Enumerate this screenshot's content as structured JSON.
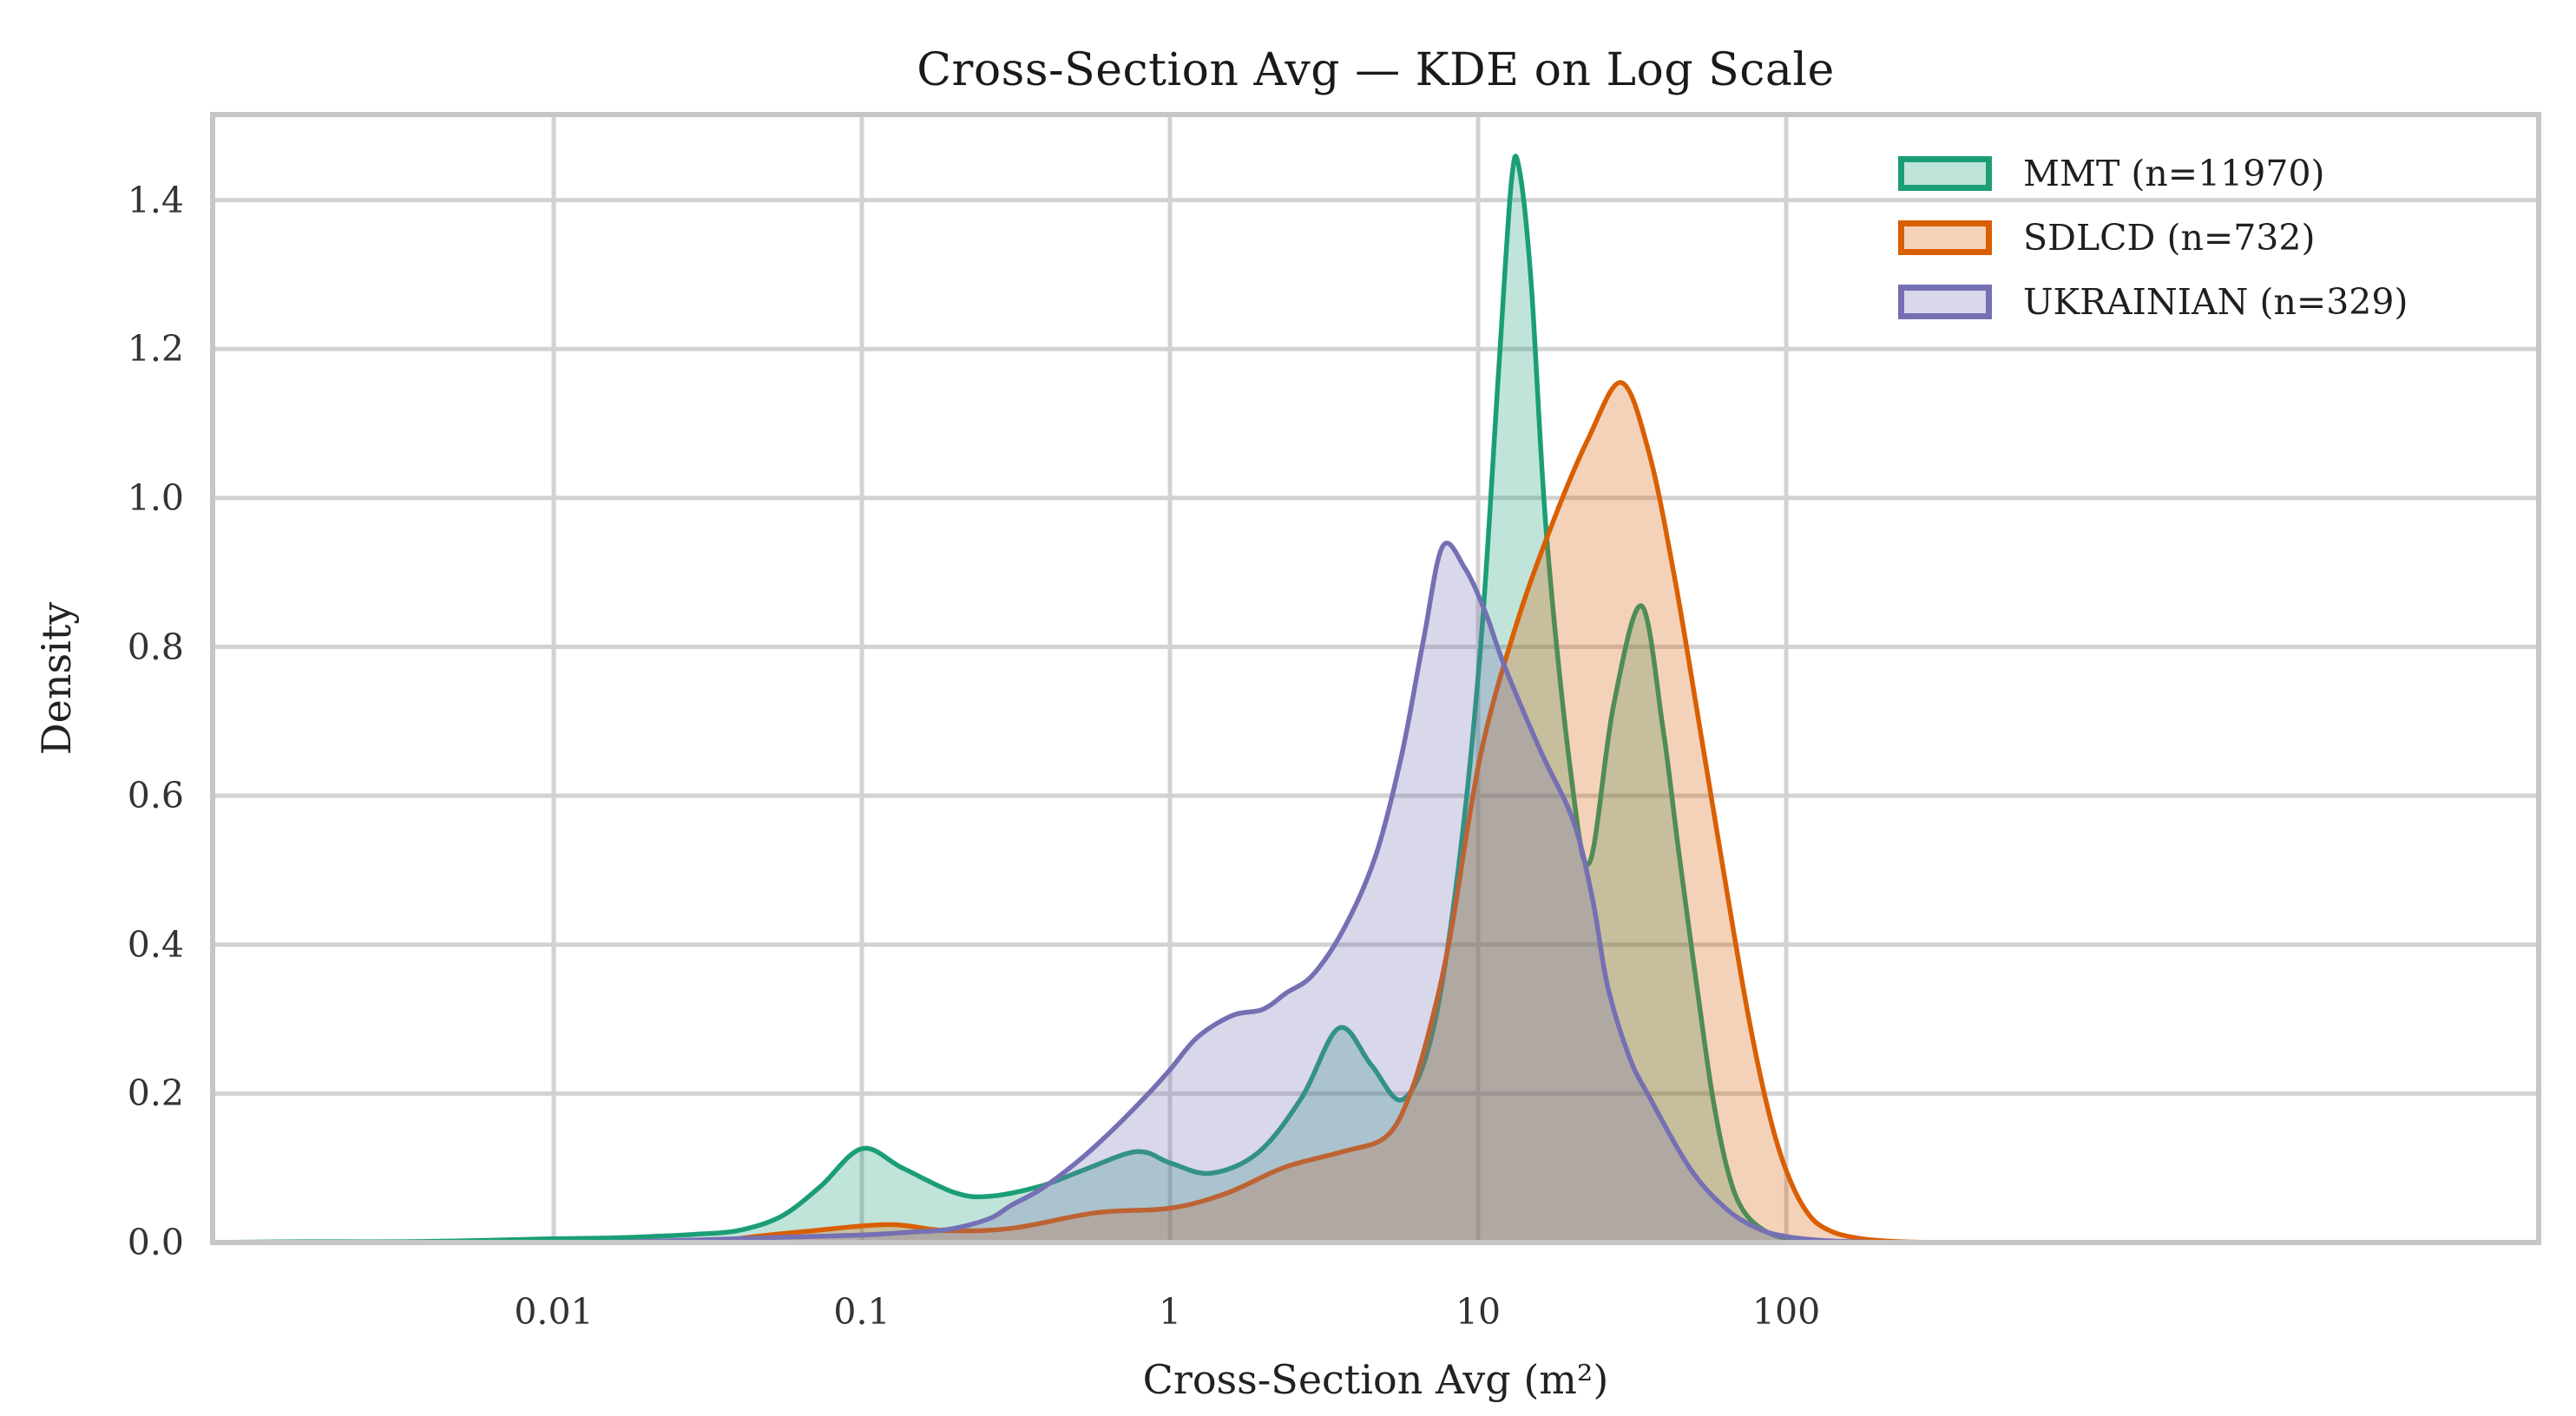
{
  "title": "Cross-Section Avg — KDE on Log Scale",
  "axes": {
    "xlabel": "Cross-Section Avg (m²)",
    "ylabel": "Density",
    "x_tick_labels": [
      "0.01",
      "0.1",
      "1",
      "10",
      "100"
    ],
    "x_tick_logs": [
      -2,
      -1,
      0,
      1,
      2
    ],
    "y_tick_labels": [
      "0.0",
      "0.2",
      "0.4",
      "0.6",
      "0.8",
      "1.0",
      "1.2",
      "1.4"
    ],
    "y_tick_values": [
      0.0,
      0.2,
      0.4,
      0.6,
      0.8,
      1.0,
      1.2,
      1.4
    ]
  },
  "legend": {
    "entries": [
      {
        "label": "MMT (n=11970)",
        "color": "#1b9e77"
      },
      {
        "label": "SDLCD (n=732)",
        "color": "#d95f02"
      },
      {
        "label": "UKRAINIAN (n=329)",
        "color": "#7570b3"
      }
    ]
  },
  "style": {
    "grid_color": "#d2d2d2",
    "spine_color": "#c6c6c6",
    "background": "#ffffff",
    "fill_alpha": 0.28,
    "line_width": 5.5
  },
  "chart_data": {
    "type": "area",
    "subtype": "kde",
    "x_scale": "log10",
    "title": "Cross-Section Avg — KDE on Log Scale",
    "xlabel": "Cross-Section Avg (m²)",
    "ylabel": "Density",
    "xlim_log10": [
      -3.107,
      4.442
    ],
    "ylim": [
      0,
      1.515
    ],
    "grid": true,
    "legend_position": "upper right",
    "series": [
      {
        "name": "MMT (n=11970)",
        "n": 11970,
        "color": "#1b9e77",
        "points_log10x_density": [
          [
            -3.107,
            0
          ],
          [
            -2.8,
            0.001
          ],
          [
            -2.5,
            0.001
          ],
          [
            -2.2,
            0.003
          ],
          [
            -2.0,
            0.005
          ],
          [
            -1.825,
            0.006
          ],
          [
            -1.684,
            0.008
          ],
          [
            -1.543,
            0.011
          ],
          [
            -1.402,
            0.016
          ],
          [
            -1.262,
            0.035
          ],
          [
            -1.135,
            0.075
          ],
          [
            -1.0,
            0.126
          ],
          [
            -0.868,
            0.1
          ],
          [
            -0.699,
            0.067
          ],
          [
            -0.586,
            0.062
          ],
          [
            -0.417,
            0.076
          ],
          [
            -0.276,
            0.098
          ],
          [
            -0.107,
            0.122
          ],
          [
            0.0,
            0.107
          ],
          [
            0.132,
            0.093
          ],
          [
            0.287,
            0.121
          ],
          [
            0.428,
            0.195
          ],
          [
            0.549,
            0.288
          ],
          [
            0.654,
            0.238
          ],
          [
            0.755,
            0.192
          ],
          [
            0.851,
            0.28
          ],
          [
            0.935,
            0.5
          ],
          [
            1.008,
            0.8
          ],
          [
            1.065,
            1.16
          ],
          [
            1.107,
            1.42
          ],
          [
            1.132,
            1.445
          ],
          [
            1.172,
            1.29
          ],
          [
            1.222,
            0.95
          ],
          [
            1.301,
            0.63
          ],
          [
            1.361,
            0.51
          ],
          [
            1.439,
            0.72
          ],
          [
            1.53,
            0.855
          ],
          [
            1.6,
            0.69
          ],
          [
            1.651,
            0.525
          ],
          [
            1.718,
            0.32
          ],
          [
            1.761,
            0.196
          ],
          [
            1.811,
            0.095
          ],
          [
            1.862,
            0.042
          ],
          [
            1.938,
            0.014
          ],
          [
            2.034,
            0.004
          ],
          [
            2.203,
            0.001
          ],
          [
            2.428,
            0
          ]
        ]
      },
      {
        "name": "SDLCD (n=732)",
        "n": 732,
        "color": "#d95f02",
        "points_log10x_density": [
          [
            -1.487,
            0
          ],
          [
            -1.346,
            0.008
          ],
          [
            -1.177,
            0.015
          ],
          [
            -0.915,
            0.024
          ],
          [
            -0.727,
            0.016
          ],
          [
            -0.515,
            0.019
          ],
          [
            -0.239,
            0.04
          ],
          [
            0.0,
            0.046
          ],
          [
            0.183,
            0.066
          ],
          [
            0.372,
            0.101
          ],
          [
            0.561,
            0.122
          ],
          [
            0.701,
            0.142
          ],
          [
            0.78,
            0.2
          ],
          [
            0.851,
            0.3
          ],
          [
            0.913,
            0.42
          ],
          [
            1.008,
            0.655
          ],
          [
            1.124,
            0.83
          ],
          [
            1.245,
            0.97
          ],
          [
            1.358,
            1.08
          ],
          [
            1.465,
            1.155
          ],
          [
            1.555,
            1.06
          ],
          [
            1.639,
            0.89
          ],
          [
            1.724,
            0.68
          ],
          [
            1.808,
            0.47
          ],
          [
            1.879,
            0.3
          ],
          [
            1.949,
            0.165
          ],
          [
            2.011,
            0.085
          ],
          [
            2.076,
            0.036
          ],
          [
            2.146,
            0.015
          ],
          [
            2.245,
            0.005
          ],
          [
            2.372,
            0.001
          ],
          [
            2.513,
            0
          ]
        ]
      },
      {
        "name": "UKRAINIAN (n=329)",
        "n": 329,
        "color": "#7570b3",
        "points_log10x_density": [
          [
            -1.831,
            0
          ],
          [
            -1.656,
            0.002
          ],
          [
            -1.487,
            0.004
          ],
          [
            -1.262,
            0.007
          ],
          [
            -1.0,
            0.01
          ],
          [
            -0.839,
            0.014
          ],
          [
            -0.713,
            0.018
          ],
          [
            -0.586,
            0.032
          ],
          [
            -0.515,
            0.05
          ],
          [
            -0.417,
            0.072
          ],
          [
            -0.29,
            0.112
          ],
          [
            -0.189,
            0.15
          ],
          [
            -0.079,
            0.196
          ],
          [
            0.0,
            0.232
          ],
          [
            0.09,
            0.276
          ],
          [
            0.203,
            0.305
          ],
          [
            0.301,
            0.313
          ],
          [
            0.377,
            0.335
          ],
          [
            0.465,
            0.36
          ],
          [
            0.569,
            0.425
          ],
          [
            0.668,
            0.52
          ],
          [
            0.752,
            0.655
          ],
          [
            0.823,
            0.81
          ],
          [
            0.885,
            0.935
          ],
          [
            0.958,
            0.905
          ],
          [
            1.025,
            0.845
          ],
          [
            1.085,
            0.775
          ],
          [
            1.203,
            0.66
          ],
          [
            1.31,
            0.565
          ],
          [
            1.372,
            0.46
          ],
          [
            1.42,
            0.345
          ],
          [
            1.49,
            0.25
          ],
          [
            1.555,
            0.196
          ],
          [
            1.687,
            0.1
          ],
          [
            1.8,
            0.047
          ],
          [
            1.901,
            0.02
          ],
          [
            2.0,
            0.008
          ],
          [
            2.146,
            0.002
          ],
          [
            2.344,
            0
          ]
        ]
      }
    ]
  }
}
